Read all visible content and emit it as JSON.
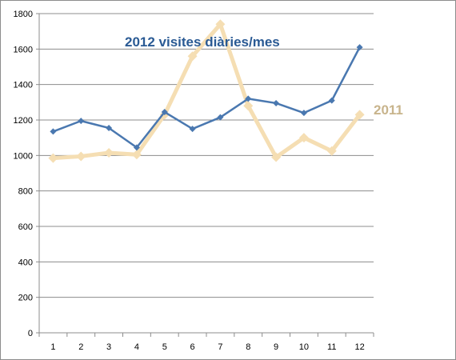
{
  "chart_data": {
    "type": "line",
    "title": "",
    "xlabel": "",
    "ylabel": "",
    "categories": [
      "1",
      "2",
      "3",
      "4",
      "5",
      "6",
      "7",
      "8",
      "9",
      "10",
      "11",
      "12"
    ],
    "ylim": [
      0,
      1800
    ],
    "y_ticks": [
      "0",
      "200",
      "400",
      "600",
      "800",
      "1000",
      "1200",
      "1400",
      "1600",
      "1800"
    ],
    "grid": true,
    "legend": "none",
    "series": [
      {
        "name": "2012 visites diàries/mes",
        "color": "#4a78b0",
        "values": [
          1135,
          1195,
          1155,
          1045,
          1245,
          1150,
          1215,
          1320,
          1295,
          1240,
          1310,
          1610
        ]
      },
      {
        "name": "2011",
        "color": "#f5deb3",
        "label_color": "#c8b48c",
        "values": [
          985,
          995,
          1015,
          1005,
          1230,
          1560,
          1740,
          1280,
          990,
          1100,
          1025,
          1230
        ]
      }
    ]
  }
}
